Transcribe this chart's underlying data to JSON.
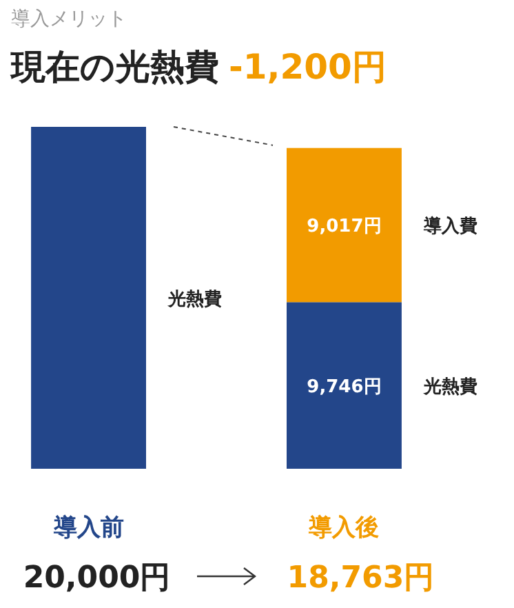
{
  "chart_data": {
    "type": "bar",
    "stacked": true,
    "title": "現在の光熱費",
    "subtitle": "導入メリット",
    "annotations": [
      "-1,200円"
    ],
    "categories": [
      "導入前",
      "導入後"
    ],
    "series": [
      {
        "name": "光熱費",
        "color": "#23468a",
        "values": [
          20000,
          9746
        ],
        "value_labels": [
          "20,000円",
          "9,746円"
        ]
      },
      {
        "name": "導入費",
        "color": "#f29b00",
        "values": [
          null,
          9017
        ],
        "value_labels": [
          null,
          "9,017円"
        ]
      }
    ],
    "totals": [
      null,
      "18,763円"
    ]
  }
}
